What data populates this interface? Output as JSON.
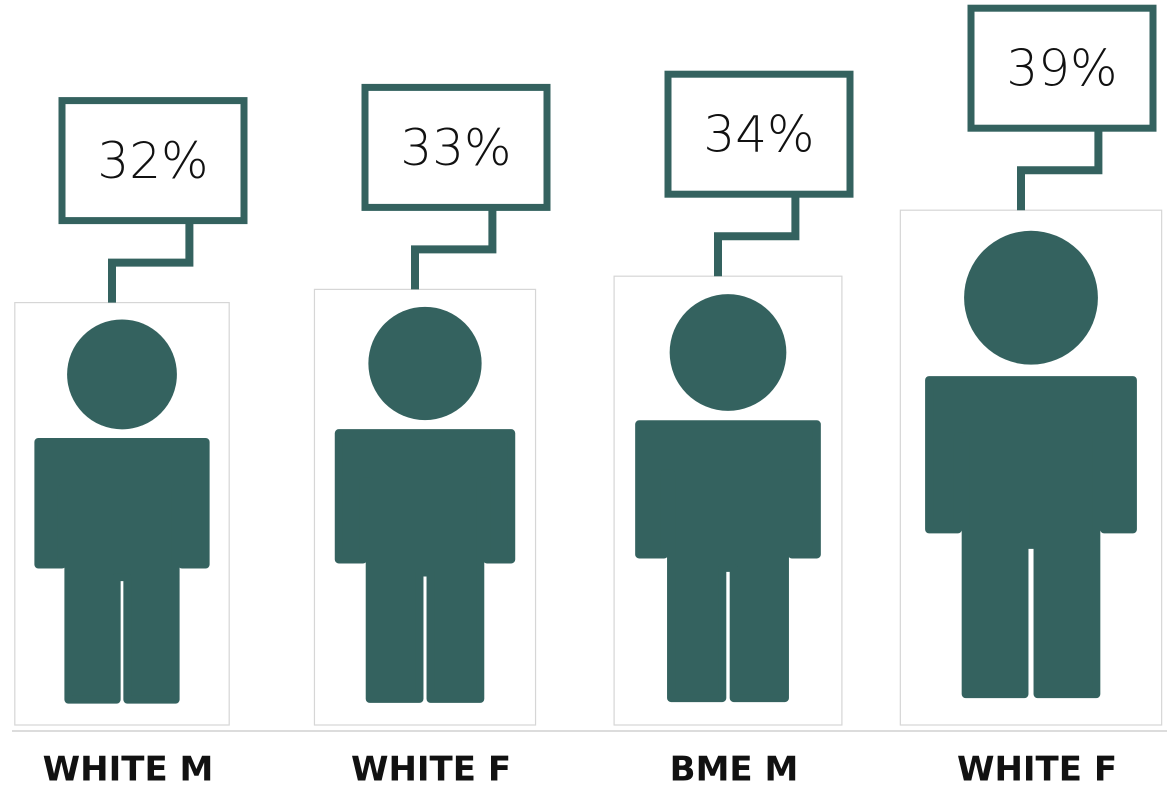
{
  "chart_data": {
    "type": "pictograph",
    "categories": [
      "WHITE M",
      "WHITE F",
      "BME M",
      "WHITE F"
    ],
    "values": [
      32,
      33,
      34,
      39
    ],
    "value_labels": [
      "32%",
      "33%",
      "34%",
      "39%"
    ],
    "color": "#34625f"
  }
}
